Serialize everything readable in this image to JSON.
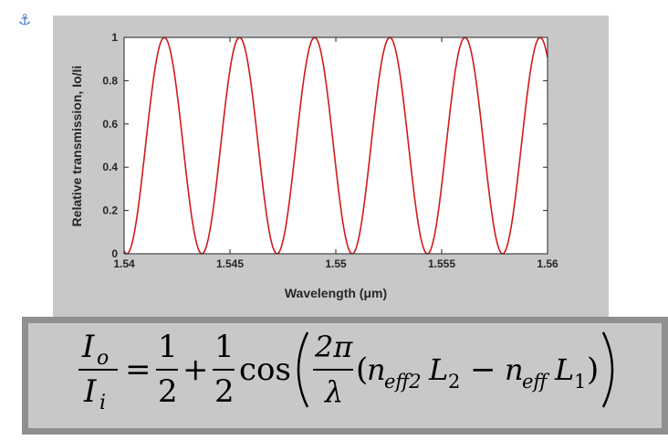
{
  "page": {
    "anchor_icon": "anchor-icon",
    "anchor_glyph": "⚓"
  },
  "chart_data": {
    "type": "line",
    "xlabel": "Wavelength (μm)",
    "ylabel": "Relative transmission, Io/Ii",
    "xlim": [
      1.54,
      1.56
    ],
    "ylim": [
      0,
      1
    ],
    "xticks": [
      1.54,
      1.545,
      1.55,
      1.555,
      1.56
    ],
    "xtick_labels": [
      "1.54",
      "1.545",
      "1.55",
      "1.555",
      "1.56"
    ],
    "yticks": [
      0,
      0.2,
      0.4,
      0.6,
      0.8,
      1
    ],
    "ytick_labels": [
      "0",
      "0.2",
      "0.4",
      "0.6",
      "0.8",
      "1"
    ],
    "grid": false,
    "series": [
      {
        "color": "#d11a1a",
        "function": "0.5 + 0.5*cos(2*pi*(x - 1.5419)/0.00355)",
        "x_start": 1.54,
        "x_end": 1.56,
        "samples": 600
      }
    ]
  },
  "formula": {
    "lhs_num": "I",
    "lhs_num_sub": "o",
    "lhs_den": "I",
    "lhs_den_sub": "i",
    "equals": "=",
    "half_num": "1",
    "half_den": "2",
    "plus": "+",
    "cos": "cos",
    "frac_num": "2π",
    "frac_den": "λ",
    "n1": "n",
    "n1_sub": "eff2",
    "L1": "L",
    "L1_sub": "2",
    "minus": "−",
    "n2": "n",
    "n2_sub": "eff",
    "L2": "L",
    "L2_sub": "1"
  }
}
